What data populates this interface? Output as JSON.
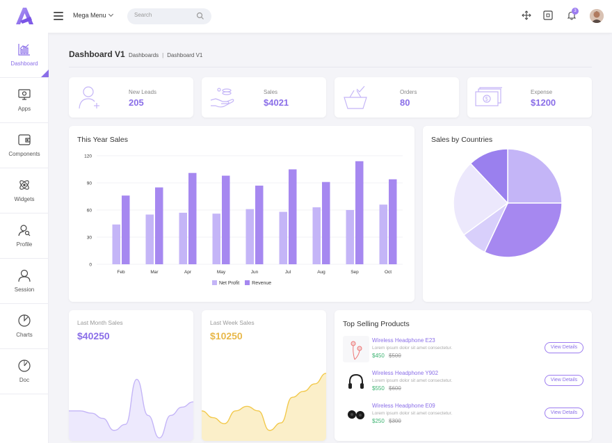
{
  "topbar": {
    "mega_menu_label": "Mega Menu",
    "search_placeholder": "Search",
    "notification_count": "3"
  },
  "sidebar": {
    "items": [
      {
        "label": "Dashboard",
        "icon": "bar-chart-icon",
        "active": true
      },
      {
        "label": "Apps",
        "icon": "monitor-icon"
      },
      {
        "label": "Components",
        "icon": "wallet-icon"
      },
      {
        "label": "Widgets",
        "icon": "atom-icon"
      },
      {
        "label": "Profile",
        "icon": "user-search-icon"
      },
      {
        "label": "Session",
        "icon": "user-icon"
      },
      {
        "label": "Charts",
        "icon": "pie-chart-icon"
      },
      {
        "label": "Doc",
        "icon": "gauge-icon"
      }
    ]
  },
  "header": {
    "title": "Dashboard V1",
    "breadcrumbs": [
      "Dashboards",
      "Dashboard V1"
    ]
  },
  "stats": [
    {
      "label": "New Leads",
      "value": "205",
      "icon": "user-add-icon"
    },
    {
      "label": "Sales",
      "value": "$4021",
      "icon": "hand-money-icon"
    },
    {
      "label": "Orders",
      "value": "80",
      "icon": "basket-icon"
    },
    {
      "label": "Expense",
      "value": "$1200",
      "icon": "cash-stack-icon"
    }
  ],
  "sales_card": {
    "title": "This Year Sales"
  },
  "countries_card": {
    "title": "Sales by Countries"
  },
  "chart_data": [
    {
      "type": "bar",
      "title": "This Year Sales",
      "categories": [
        "Feb",
        "Mar",
        "Apr",
        "May",
        "Jun",
        "Jul",
        "Aug",
        "Sep",
        "Oct"
      ],
      "series": [
        {
          "name": "Net Profit",
          "values": [
            44,
            55,
            57,
            56,
            61,
            58,
            63,
            60,
            66
          ],
          "color": "#c4b5f7"
        },
        {
          "name": "Revenue",
          "values": [
            76,
            85,
            101,
            98,
            87,
            105,
            91,
            114,
            94
          ],
          "color": "#a688f0"
        }
      ],
      "yticks": [
        "0",
        "30",
        "60",
        "90",
        "120"
      ],
      "ylim": [
        0,
        120
      ],
      "grid": true,
      "legend": "bottom"
    },
    {
      "type": "pie",
      "title": "Sales by Countries",
      "values": [
        25,
        32,
        8,
        23,
        12
      ],
      "colors": [
        "#c4b5f7",
        "#a688f0",
        "#d8cffb",
        "#ece8fc",
        "#9a80ee"
      ]
    },
    {
      "type": "area",
      "title": "Last Month Sales",
      "values": [
        40,
        40,
        37,
        30,
        14,
        22,
        82,
        34,
        4,
        34,
        45,
        52
      ],
      "color": "#c4b5f7"
    },
    {
      "type": "area",
      "title": "Last Week Sales",
      "values": [
        40,
        31,
        23,
        40,
        46,
        40,
        14,
        24,
        58,
        66,
        76,
        90
      ],
      "color": "#f2c94c"
    }
  ],
  "last_month": {
    "title": "Last Month Sales",
    "value": "$40250",
    "color": "#8a6ee8"
  },
  "last_week": {
    "title": "Last Week Sales",
    "value": "$10250",
    "color": "#e8b84a"
  },
  "products": {
    "title": "Top Selling Products",
    "button_label": "View Details",
    "items": [
      {
        "name": "Wireless Headphone E23",
        "desc": "Lorem ipsum dolor sit amet consectetur.",
        "price": "$450",
        "old": "$500",
        "icon": "earbuds-icon"
      },
      {
        "name": "Wireless Headphone Y902",
        "desc": "Lorem ipsum dolor sit amet consectetur.",
        "price": "$550",
        "old": "$600",
        "icon": "headphones-icon"
      },
      {
        "name": "Wireless Headphone E09",
        "desc": "Lorem ipsum dolor sit amet consectetur.",
        "price": "$250",
        "old": "$300",
        "icon": "earbuds-black-icon"
      }
    ]
  }
}
